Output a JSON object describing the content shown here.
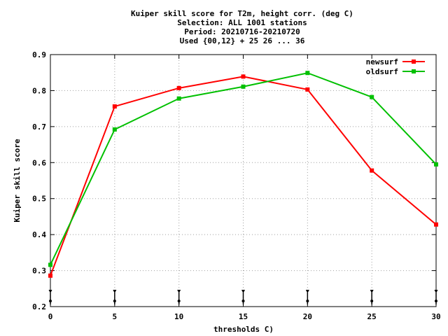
{
  "chart_data": {
    "type": "line",
    "title_lines": [
      "Kuiper skill score  for T2m, height corr. (deg C)",
      "Selection: ALL   1001 stations",
      "Period: 20210716-20210720",
      "Used {00,12} + 25 26 ... 36"
    ],
    "xlabel": "thresholds C)",
    "ylabel": "Kuiper skill score",
    "x": [
      0,
      5,
      10,
      15,
      20,
      25,
      30
    ],
    "xticks": [
      0,
      5,
      10,
      15,
      20,
      25,
      30
    ],
    "xtick_labels": [
      "0",
      "5",
      "10",
      "15",
      "20",
      "25",
      "30"
    ],
    "yticks": [
      0.2,
      0.3,
      0.4,
      0.5,
      0.6,
      0.7,
      0.8,
      0.9
    ],
    "ytick_labels": [
      "0.2",
      "0.3",
      "0.4",
      "0.5",
      "0.6",
      "0.7",
      "0.8",
      "0.9"
    ],
    "xlim": [
      0,
      30
    ],
    "ylim": [
      0.2,
      0.9
    ],
    "grid": true,
    "legend_position": "top-right",
    "series": [
      {
        "name": "newsurf",
        "color": "#ff0000",
        "values": [
          0.286,
          0.756,
          0.807,
          0.839,
          0.803,
          0.578,
          0.428
        ]
      },
      {
        "name": "oldsurf",
        "color": "#00c000",
        "values": [
          0.316,
          0.692,
          0.778,
          0.811,
          0.849,
          0.782,
          0.595
        ]
      }
    ]
  }
}
